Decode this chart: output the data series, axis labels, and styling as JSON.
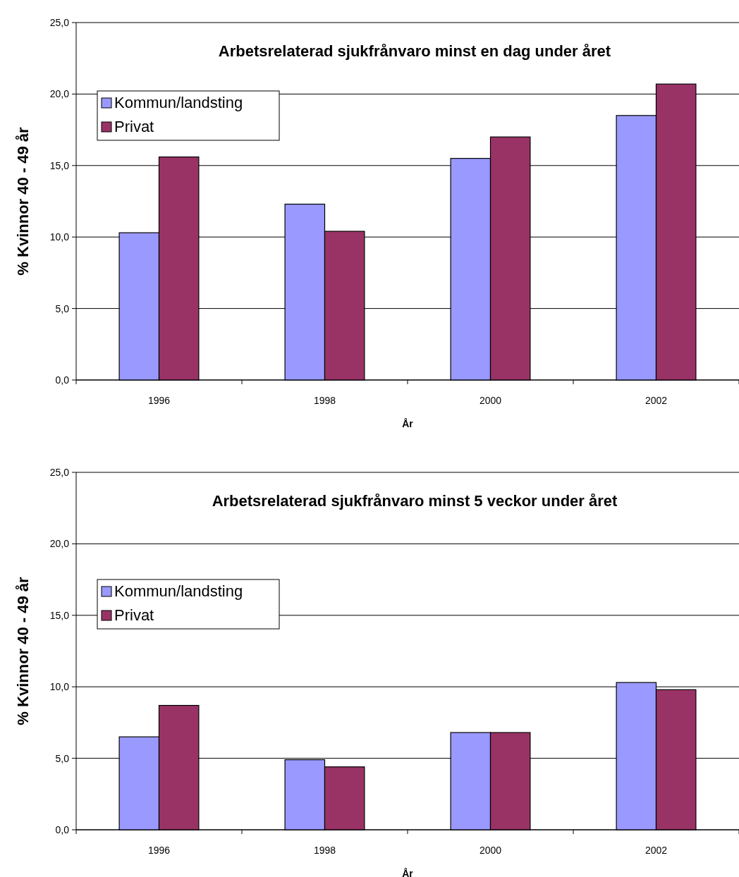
{
  "chart_data": [
    {
      "type": "bar",
      "title": "Arbetsrelaterad sjukfrånvaro minst en dag under året",
      "xlabel": "År",
      "ylabel": "% Kvinnor 40 - 49 år",
      "categories": [
        "1996",
        "1998",
        "2000",
        "2002"
      ],
      "series": [
        {
          "name": "Kommun/landsting",
          "color": "#9999ff",
          "values": [
            10.3,
            12.3,
            15.5,
            18.5
          ]
        },
        {
          "name": "Privat",
          "color": "#993366",
          "values": [
            15.6,
            10.4,
            17.0,
            20.7
          ]
        }
      ],
      "ylim": [
        0,
        25
      ],
      "yticks": [
        {
          "value": 0,
          "label": "0,0"
        },
        {
          "value": 5,
          "label": "5,0"
        },
        {
          "value": 10,
          "label": "10,0"
        },
        {
          "value": 15,
          "label": "15,0"
        },
        {
          "value": 20,
          "label": "20,0"
        },
        {
          "value": 25,
          "label": "25,0"
        }
      ],
      "grid": "y",
      "legend": "top left"
    },
    {
      "type": "bar",
      "title": "Arbetsrelaterad sjukfrånvaro minst 5 veckor under året",
      "xlabel": "År",
      "ylabel": "% Kvinnor 40 - 49 år",
      "categories": [
        "1996",
        "1998",
        "2000",
        "2002"
      ],
      "series": [
        {
          "name": "Kommun/landsting",
          "color": "#9999ff",
          "values": [
            6.5,
            4.9,
            6.8,
            10.3
          ]
        },
        {
          "name": "Privat",
          "color": "#993366",
          "values": [
            8.7,
            4.4,
            6.8,
            9.8
          ]
        }
      ],
      "ylim": [
        0,
        25
      ],
      "yticks": [
        {
          "value": 0,
          "label": "0,0"
        },
        {
          "value": 5,
          "label": "5,0"
        },
        {
          "value": 10,
          "label": "10,0"
        },
        {
          "value": 15,
          "label": "15,0"
        },
        {
          "value": 20,
          "label": "20,0"
        },
        {
          "value": 25,
          "label": "25,0"
        }
      ],
      "grid": "y",
      "legend": "left"
    }
  ]
}
